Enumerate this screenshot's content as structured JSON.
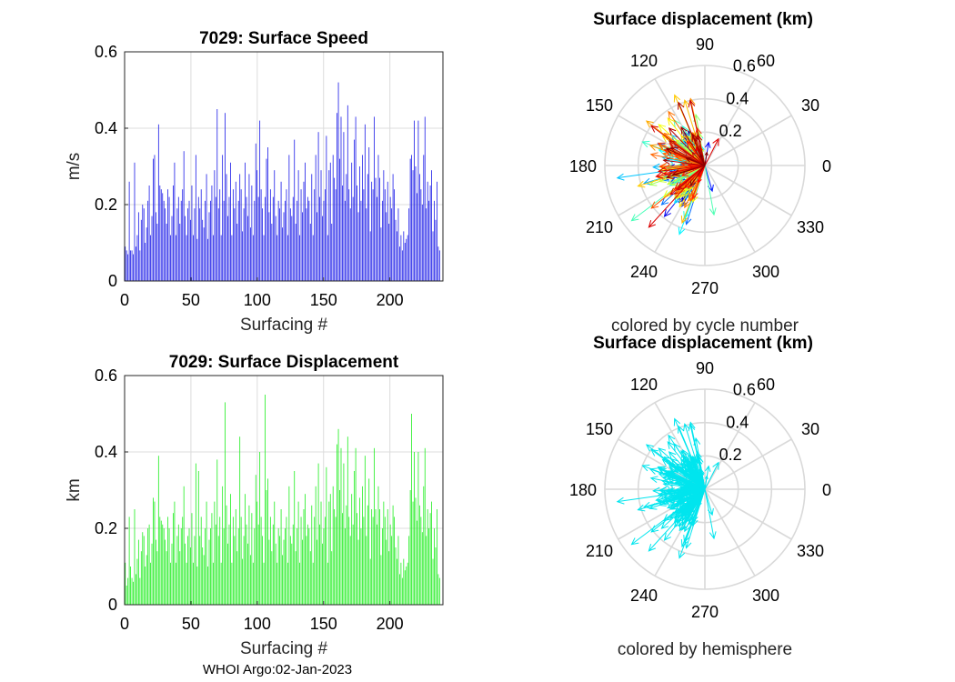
{
  "colors": {
    "speed_bars": "#1f1fe8",
    "disp_bars": "#22ee22",
    "hemisphere_arrows": "#00e5ee",
    "grid": "#dcdcdc"
  },
  "chart_data": [
    {
      "id": "speed",
      "type": "bar",
      "title": "7029: Surface Speed",
      "xlabel": "Surfacing #",
      "ylabel": "m/s",
      "xlim": [
        0,
        240
      ],
      "ylim": [
        0,
        0.6
      ],
      "xticks": [
        "0",
        "50",
        "100",
        "150",
        "200"
      ],
      "yticks": [
        "0",
        "0.2",
        "0.4",
        "0.6"
      ],
      "grid": true,
      "n_bars": 238,
      "values": [
        0.09,
        0.08,
        0.07,
        0.26,
        0.08,
        0.08,
        0.07,
        0.31,
        0.09,
        0.12,
        0.18,
        0.08,
        0.16,
        0.2,
        0.19,
        0.1,
        0.14,
        0.21,
        0.25,
        0.12,
        0.17,
        0.32,
        0.33,
        0.18,
        0.15,
        0.41,
        0.25,
        0.24,
        0.23,
        0.21,
        0.19,
        0.15,
        0.24,
        0.22,
        0.12,
        0.17,
        0.25,
        0.31,
        0.12,
        0.19,
        0.22,
        0.15,
        0.21,
        0.24,
        0.34,
        0.17,
        0.12,
        0.19,
        0.21,
        0.16,
        0.25,
        0.12,
        0.19,
        0.33,
        0.11,
        0.22,
        0.19,
        0.24,
        0.16,
        0.14,
        0.21,
        0.28,
        0.11,
        0.18,
        0.21,
        0.25,
        0.12,
        0.29,
        0.22,
        0.45,
        0.19,
        0.24,
        0.12,
        0.33,
        0.21,
        0.44,
        0.28,
        0.17,
        0.22,
        0.31,
        0.12,
        0.24,
        0.19,
        0.26,
        0.15,
        0.21,
        0.28,
        0.24,
        0.13,
        0.19,
        0.31,
        0.22,
        0.17,
        0.28,
        0.14,
        0.25,
        0.12,
        0.21,
        0.36,
        0.29,
        0.22,
        0.42,
        0.24,
        0.19,
        0.12,
        0.22,
        0.32,
        0.35,
        0.18,
        0.24,
        0.15,
        0.22,
        0.29,
        0.17,
        0.12,
        0.21,
        0.19,
        0.26,
        0.14,
        0.18,
        0.21,
        0.24,
        0.12,
        0.33,
        0.19,
        0.17,
        0.22,
        0.37,
        0.15,
        0.21,
        0.29,
        0.12,
        0.24,
        0.18,
        0.26,
        0.31,
        0.19,
        0.22,
        0.21,
        0.15,
        0.28,
        0.12,
        0.24,
        0.33,
        0.18,
        0.39,
        0.22,
        0.29,
        0.17,
        0.21,
        0.24,
        0.38,
        0.12,
        0.29,
        0.31,
        0.15,
        0.33,
        0.27,
        0.24,
        0.44,
        0.52,
        0.32,
        0.43,
        0.25,
        0.39,
        0.21,
        0.28,
        0.46,
        0.24,
        0.19,
        0.31,
        0.22,
        0.37,
        0.43,
        0.25,
        0.18,
        0.3,
        0.21,
        0.33,
        0.24,
        0.41,
        0.19,
        0.28,
        0.35,
        0.13,
        0.26,
        0.24,
        0.43,
        0.27,
        0.22,
        0.33,
        0.27,
        0.14,
        0.21,
        0.29,
        0.24,
        0.18,
        0.26,
        0.15,
        0.22,
        0.19,
        0.28,
        0.24,
        0.16,
        0.13,
        0.19,
        0.09,
        0.12,
        0.08,
        0.13,
        0.1,
        0.11,
        0.12,
        0.19,
        0.32,
        0.33,
        0.29,
        0.42,
        0.3,
        0.23,
        0.42,
        0.28,
        0.24,
        0.2,
        0.33,
        0.43,
        0.19,
        0.26,
        0.21,
        0.25,
        0.29,
        0.13,
        0.21,
        0.16,
        0.26,
        0.09,
        0.08
      ]
    },
    {
      "id": "displacement",
      "type": "bar",
      "title": "7029: Surface Displacement",
      "xlabel": "Surfacing #",
      "ylabel": "km",
      "xlim": [
        0,
        240
      ],
      "ylim": [
        0,
        0.6
      ],
      "xticks": [
        "0",
        "50",
        "100",
        "150",
        "200"
      ],
      "yticks": [
        "0",
        "0.2",
        "0.4",
        "0.6"
      ],
      "grid": true,
      "n_bars": 238,
      "values": [
        0.11,
        0.05,
        0.07,
        0.23,
        0.1,
        0.07,
        0.06,
        0.25,
        0.08,
        0.12,
        0.17,
        0.07,
        0.14,
        0.19,
        0.18,
        0.1,
        0.13,
        0.2,
        0.21,
        0.11,
        0.16,
        0.28,
        0.27,
        0.17,
        0.14,
        0.39,
        0.23,
        0.22,
        0.21,
        0.2,
        0.17,
        0.14,
        0.23,
        0.2,
        0.11,
        0.16,
        0.24,
        0.27,
        0.11,
        0.18,
        0.21,
        0.14,
        0.2,
        0.23,
        0.31,
        0.16,
        0.11,
        0.18,
        0.2,
        0.15,
        0.24,
        0.11,
        0.18,
        0.37,
        0.1,
        0.35,
        0.18,
        0.23,
        0.15,
        0.13,
        0.2,
        0.27,
        0.1,
        0.17,
        0.2,
        0.24,
        0.11,
        0.27,
        0.21,
        0.38,
        0.18,
        0.23,
        0.11,
        0.31,
        0.2,
        0.53,
        0.26,
        0.16,
        0.21,
        0.29,
        0.11,
        0.23,
        0.18,
        0.25,
        0.14,
        0.2,
        0.44,
        0.23,
        0.12,
        0.18,
        0.29,
        0.21,
        0.16,
        0.26,
        0.13,
        0.24,
        0.11,
        0.2,
        0.34,
        0.27,
        0.21,
        0.4,
        0.23,
        0.18,
        0.11,
        0.55,
        0.3,
        0.33,
        0.17,
        0.23,
        0.14,
        0.21,
        0.27,
        0.16,
        0.11,
        0.2,
        0.18,
        0.25,
        0.13,
        0.17,
        0.2,
        0.23,
        0.11,
        0.31,
        0.18,
        0.16,
        0.21,
        0.35,
        0.14,
        0.2,
        0.27,
        0.11,
        0.23,
        0.17,
        0.25,
        0.29,
        0.18,
        0.21,
        0.2,
        0.14,
        0.26,
        0.11,
        0.23,
        0.31,
        0.17,
        0.37,
        0.21,
        0.27,
        0.16,
        0.2,
        0.23,
        0.36,
        0.11,
        0.27,
        0.29,
        0.14,
        0.31,
        0.25,
        0.23,
        0.42,
        0.46,
        0.3,
        0.41,
        0.24,
        0.37,
        0.2,
        0.26,
        0.44,
        0.23,
        0.18,
        0.29,
        0.21,
        0.35,
        0.41,
        0.24,
        0.17,
        0.28,
        0.2,
        0.31,
        0.23,
        0.39,
        0.18,
        0.26,
        0.33,
        0.12,
        0.25,
        0.23,
        0.41,
        0.25,
        0.21,
        0.31,
        0.25,
        0.13,
        0.2,
        0.27,
        0.23,
        0.17,
        0.25,
        0.14,
        0.21,
        0.18,
        0.26,
        0.23,
        0.15,
        0.12,
        0.18,
        0.08,
        0.11,
        0.07,
        0.12,
        0.09,
        0.1,
        0.11,
        0.18,
        0.3,
        0.5,
        0.27,
        0.4,
        0.28,
        0.22,
        0.4,
        0.26,
        0.23,
        0.19,
        0.31,
        0.41,
        0.18,
        0.25,
        0.2,
        0.24,
        0.27,
        0.12,
        0.2,
        0.15,
        0.25,
        0.08,
        0.07
      ]
    },
    {
      "id": "polar-cycle",
      "type": "polar-quiver",
      "title": "Surface displacement (km)",
      "caption": "colored by cycle number",
      "rlim": [
        0,
        0.6
      ],
      "rticks": [
        "0.2",
        "0.4",
        "0.6"
      ],
      "theta_ticks": [
        "0",
        "30",
        "60",
        "90",
        "120",
        "150",
        "180",
        "210",
        "240",
        "270",
        "300",
        "330"
      ],
      "coloring": "cycle number (jet colormap)"
    },
    {
      "id": "polar-hemisphere",
      "type": "polar-quiver",
      "title": "Surface displacement (km)",
      "caption": "colored by hemisphere",
      "rlim": [
        0,
        0.6
      ],
      "rticks": [
        "0.2",
        "0.4",
        "0.6"
      ],
      "theta_ticks": [
        "0",
        "30",
        "60",
        "90",
        "120",
        "150",
        "180",
        "210",
        "240",
        "270",
        "300",
        "330"
      ],
      "coloring": "hemisphere"
    }
  ],
  "footer": {
    "text": "WHOI Argo:02-Jan-2023"
  }
}
